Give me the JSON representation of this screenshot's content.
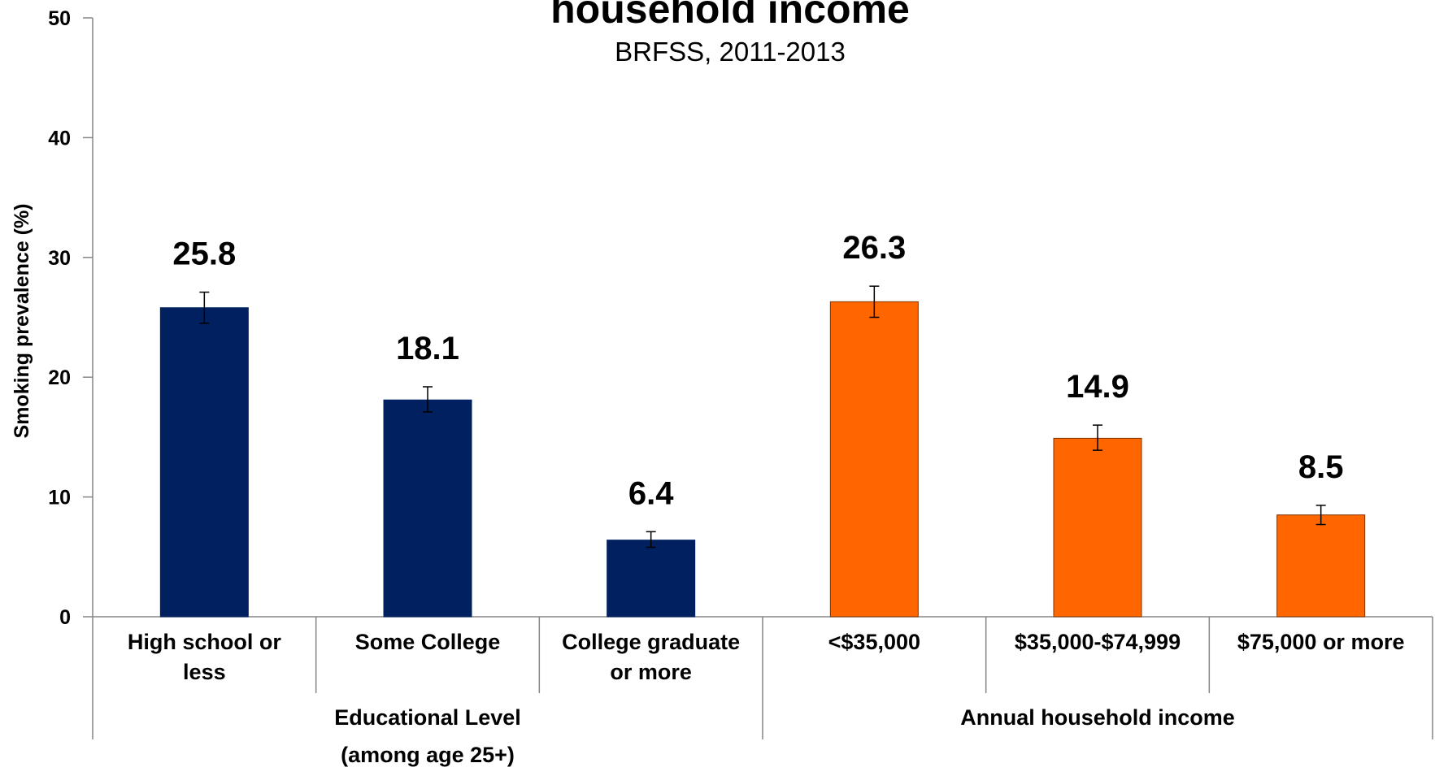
{
  "chart_data": {
    "type": "bar",
    "title": "household income",
    "subtitle": "BRFSS, 2011-2013",
    "ylabel": "Smoking prevalence (%)",
    "xlabel": "",
    "ylim": [
      0,
      50
    ],
    "yticks": [
      "0",
      "10",
      "20",
      "30",
      "40",
      "50"
    ],
    "grid": false,
    "legend": "none",
    "categories": [
      {
        "lines": [
          "High school or",
          "less"
        ]
      },
      {
        "lines": [
          "Some College"
        ]
      },
      {
        "lines": [
          "College graduate",
          "or more"
        ]
      },
      {
        "lines": [
          "<$35,000"
        ]
      },
      {
        "lines": [
          "$35,000-$74,999"
        ]
      },
      {
        "lines": [
          "$75,000 or more"
        ]
      }
    ],
    "values": [
      25.8,
      18.1,
      6.4,
      26.3,
      14.9,
      8.5
    ],
    "value_labels": [
      "25.8",
      "18.1",
      "6.4",
      "26.3",
      "14.9",
      "8.5"
    ],
    "error_low": [
      24.5,
      17.1,
      5.8,
      25.0,
      13.9,
      7.7
    ],
    "error_high": [
      27.1,
      19.2,
      7.1,
      27.6,
      16.0,
      9.3
    ],
    "bar_colors": [
      "#002060",
      "#002060",
      "#002060",
      "#FF6600",
      "#FF6600",
      "#FF6600"
    ],
    "groups": [
      {
        "lines": [
          "Educational Level",
          "(among age 25+)"
        ],
        "start": 0,
        "end": 2
      },
      {
        "lines": [
          "Annual household income"
        ],
        "start": 3,
        "end": 5
      }
    ]
  }
}
